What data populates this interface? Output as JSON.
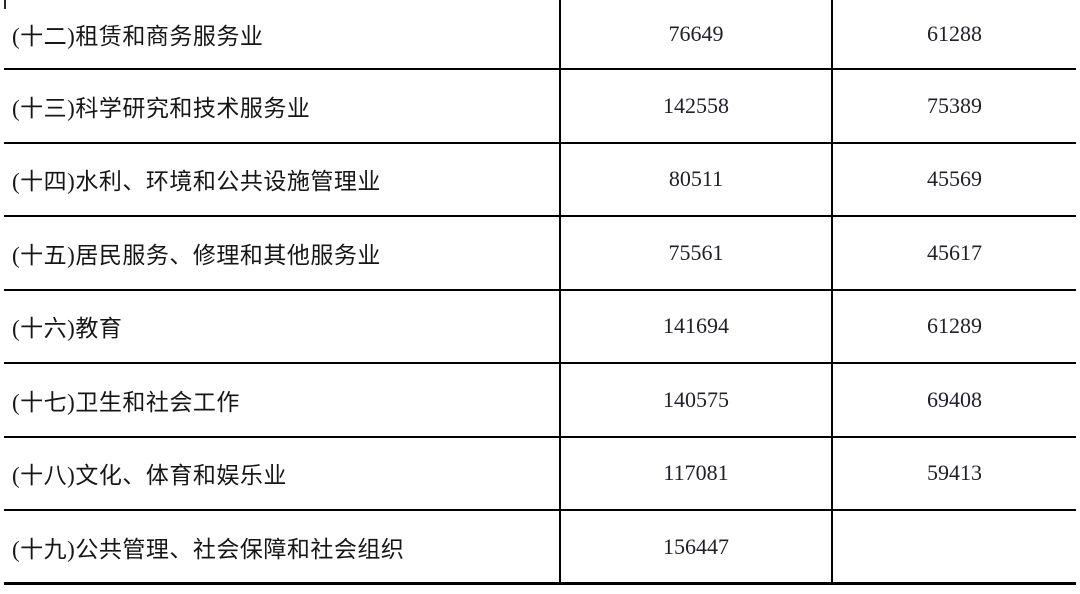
{
  "page": {
    "background_color": "#ffffff",
    "border_color": "#000000",
    "label_text_color": "#161616",
    "number_text_color": "#20202a"
  },
  "table": {
    "rows": [
      {
        "label": "(十二)租赁和商务服务业",
        "v1": "76649",
        "v2": "61288"
      },
      {
        "label": "(十三)科学研究和技术服务业",
        "v1": "142558",
        "v2": "75389"
      },
      {
        "label": "(十四)水利、环境和公共设施管理业",
        "v1": "80511",
        "v2": "45569"
      },
      {
        "label": "(十五)居民服务、修理和其他服务业",
        "v1": "75561",
        "v2": "45617"
      },
      {
        "label": "(十六)教育",
        "v1": "141694",
        "v2": "61289"
      },
      {
        "label": "(十七)卫生和社会工作",
        "v1": "140575",
        "v2": "69408"
      },
      {
        "label": "(十八)文化、体育和娱乐业",
        "v1": "117081",
        "v2": "59413"
      },
      {
        "label": "(十九)公共管理、社会保障和社会组织",
        "v1": "156447",
        "v2": ""
      }
    ]
  }
}
